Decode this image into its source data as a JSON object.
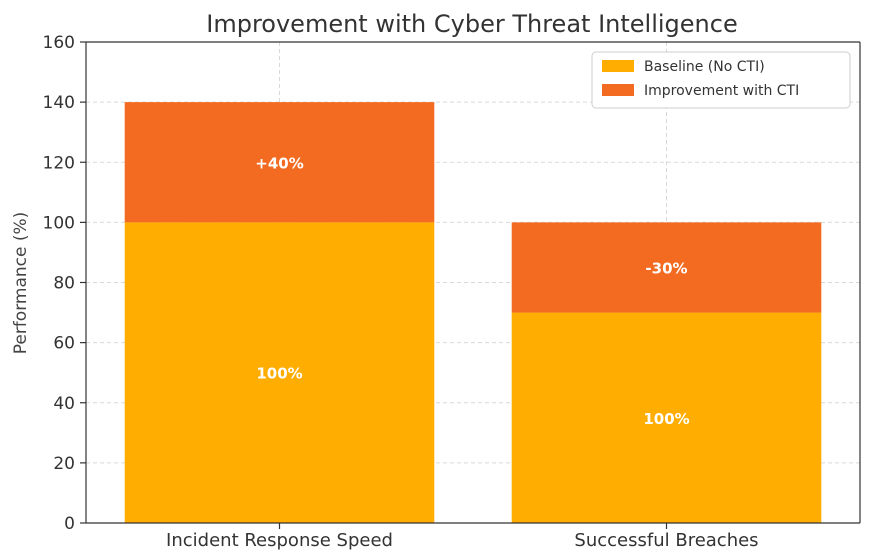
{
  "chart_data": {
    "type": "bar",
    "stacked": true,
    "title": "Improvement with Cyber Threat Intelligence",
    "xlabel": "",
    "ylabel": "Performance (%)",
    "ylim": [
      0,
      160
    ],
    "yticks": [
      0,
      20,
      40,
      60,
      80,
      100,
      120,
      140,
      160
    ],
    "grid": true,
    "legend_position": "top-right",
    "categories": [
      "Incident Response Speed",
      "Successful Breaches"
    ],
    "series": [
      {
        "name": "Baseline (No CTI)",
        "color": "#ffad00",
        "values": [
          100,
          70
        ],
        "labels": [
          "100%",
          "100%"
        ]
      },
      {
        "name": "Improvement with CTI",
        "color": "#f26b21",
        "values": [
          40,
          30
        ],
        "labels": [
          "+40%",
          "-30%"
        ]
      }
    ]
  }
}
